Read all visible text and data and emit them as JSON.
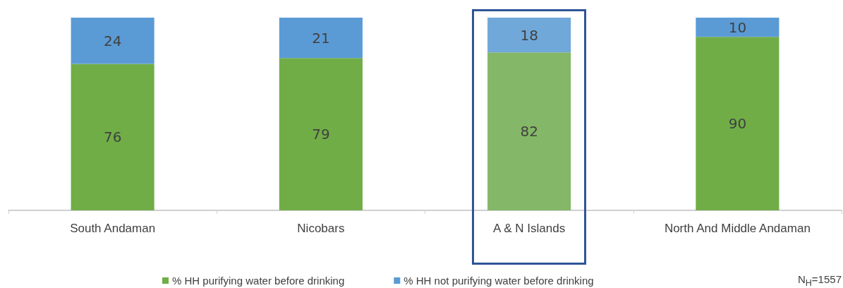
{
  "chart_data": {
    "type": "bar",
    "stacked": true,
    "data_labels": true,
    "legend": "bottom",
    "categories": [
      "South Andaman",
      "Nicobars",
      "A & N Islands",
      "North And Middle Andaman"
    ],
    "series": [
      {
        "name": "% HH purifying water before drinking",
        "color": "#70ad47",
        "colors": [
          "#70ad47",
          "#70ad47",
          "#84b767",
          "#70ad47"
        ],
        "values": [
          76,
          79,
          82,
          90
        ]
      },
      {
        "name": "% HH not purifying water before drinking",
        "color": "#5b9bd5",
        "colors": [
          "#5b9bd5",
          "#5b9bd5",
          "#70a8da",
          "#5b9bd5"
        ],
        "values": [
          24,
          21,
          18,
          10
        ]
      }
    ],
    "annotations": [
      "N$_{H}$=1557"
    ]
  }
}
